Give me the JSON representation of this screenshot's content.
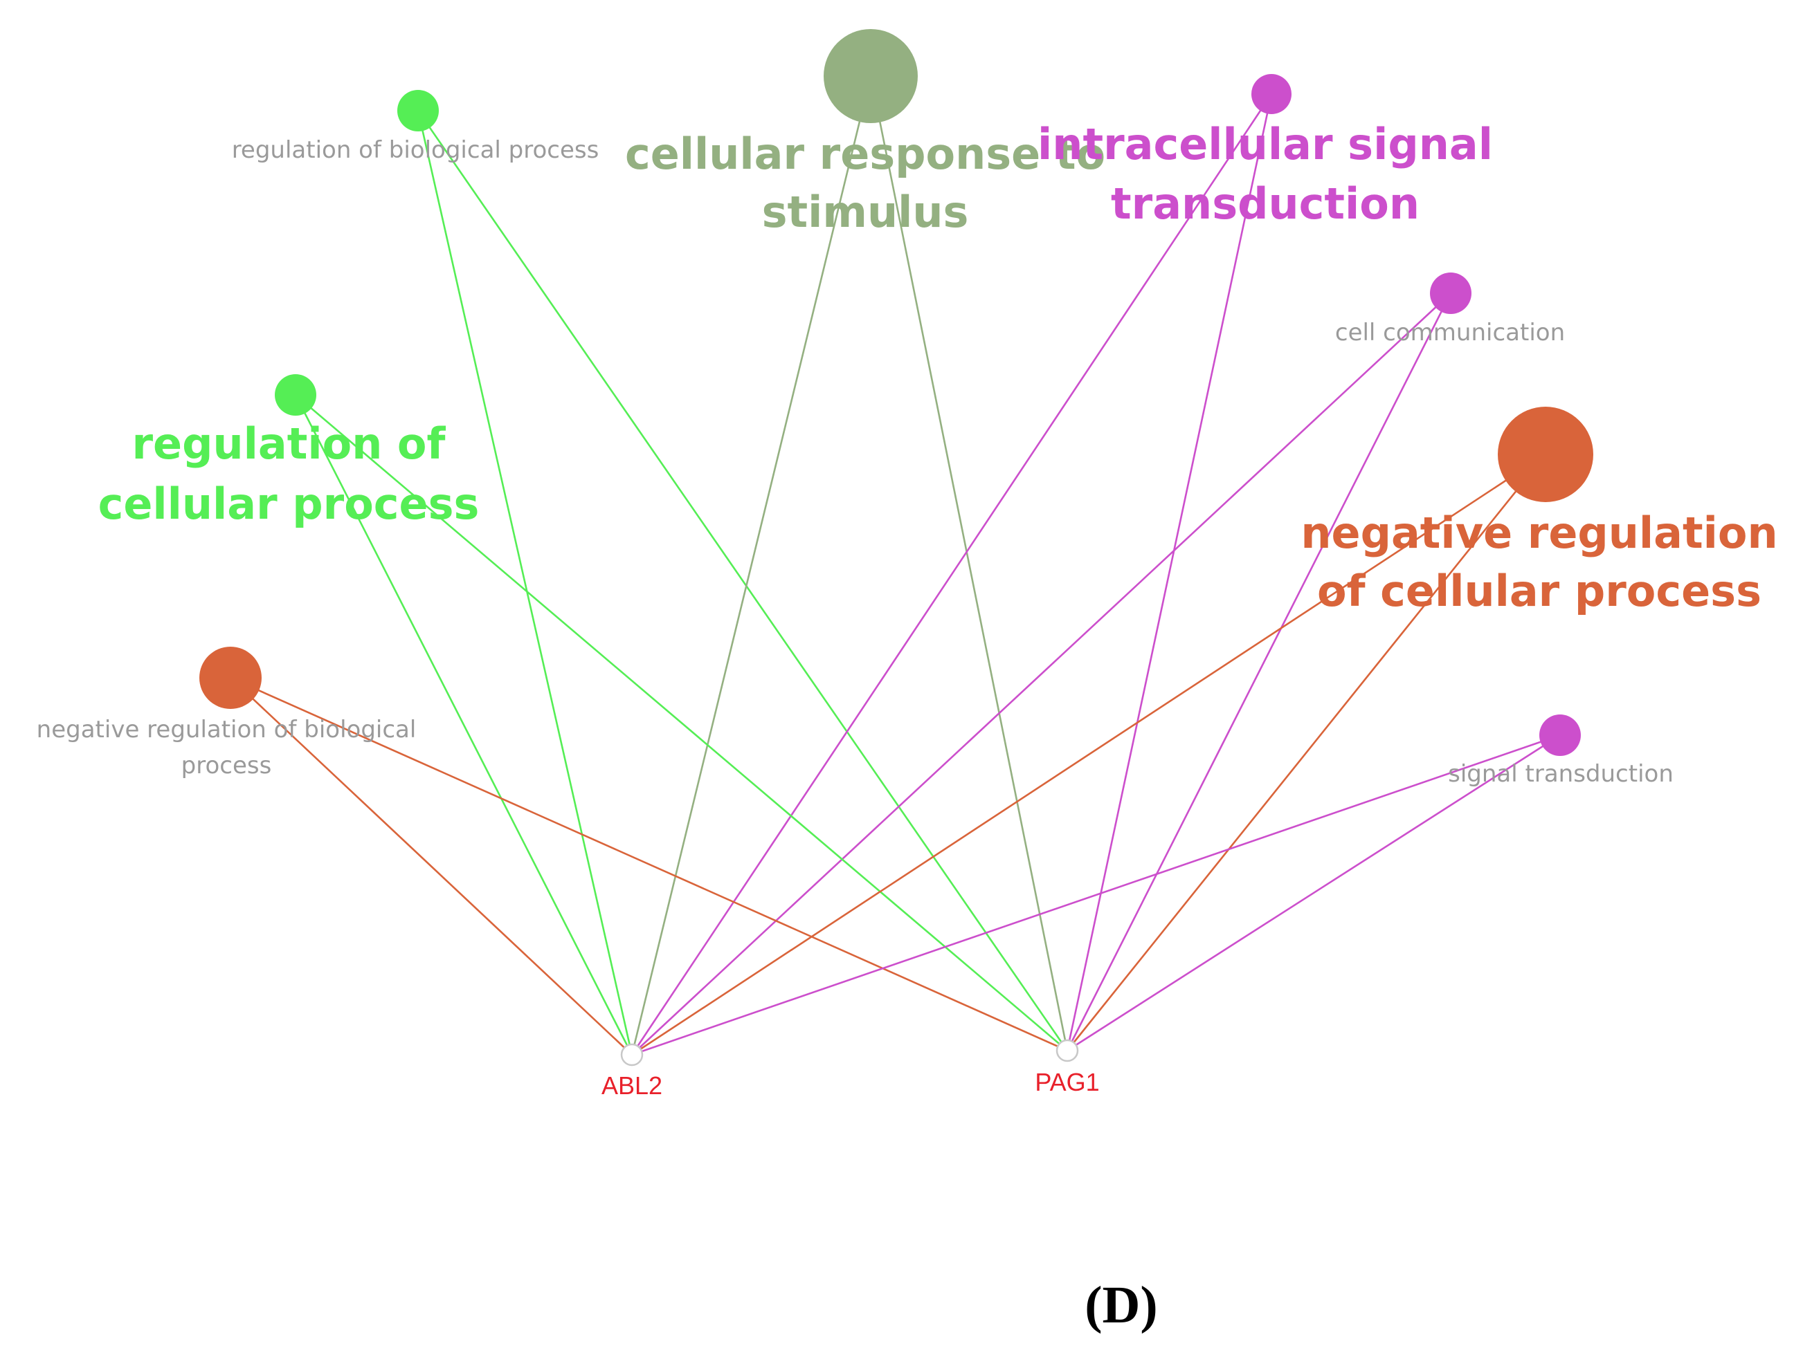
{
  "figure": {
    "panel_label": "(D)"
  },
  "colors": {
    "green": "#55ee55",
    "sage": "#94b081",
    "magenta": "#cc4fcc",
    "orange": "#d9643a",
    "small_label": "#9a9a9a",
    "gene_label": "#e8202a"
  },
  "genes": [
    {
      "id": "abl2",
      "label": "ABL2"
    },
    {
      "id": "pag1",
      "label": "PAG1"
    }
  ],
  "terms": [
    {
      "id": "reg-bio",
      "lines": [
        "regulation of biological process"
      ],
      "color": "green",
      "size": "small",
      "edges": [
        "abl2",
        "pag1"
      ]
    },
    {
      "id": "cell-resp",
      "lines": [
        "cellular response to",
        "stimulus"
      ],
      "color": "sage",
      "size": "large",
      "edges": [
        "abl2",
        "pag1"
      ]
    },
    {
      "id": "intra-sig",
      "lines": [
        "intracellular signal",
        "transduction"
      ],
      "color": "magenta",
      "size": "small",
      "emphasis": "bold",
      "edges": [
        "abl2",
        "pag1"
      ]
    },
    {
      "id": "cell-comm",
      "lines": [
        "cell communication"
      ],
      "color": "magenta",
      "size": "small",
      "edges": [
        "abl2",
        "pag1"
      ]
    },
    {
      "id": "reg-cell",
      "lines": [
        "regulation of",
        "cellular process"
      ],
      "color": "green",
      "size": "small",
      "emphasis": "bold",
      "edges": [
        "abl2",
        "pag1"
      ]
    },
    {
      "id": "neg-reg-cell",
      "lines": [
        "negative regulation",
        "of cellular process"
      ],
      "color": "orange",
      "size": "large",
      "edges": [
        "abl2",
        "pag1"
      ]
    },
    {
      "id": "neg-reg-bio",
      "lines": [
        "negative regulation of biological",
        "process"
      ],
      "color": "orange",
      "size": "medium",
      "edges": [
        "abl2",
        "pag1"
      ]
    },
    {
      "id": "sig-trans",
      "lines": [
        "signal transduction"
      ],
      "color": "magenta",
      "size": "small",
      "edges": [
        "abl2",
        "pag1"
      ]
    }
  ]
}
